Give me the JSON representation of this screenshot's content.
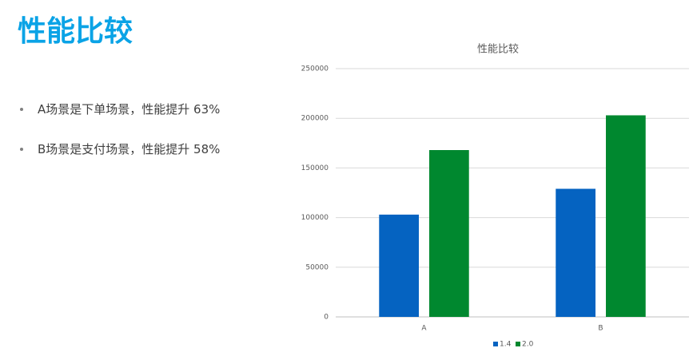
{
  "title": "性能比较",
  "bullets": [
    "A场景是下单场景，性能提升 63%",
    "B场景是支付场景，性能提升 58%"
  ],
  "chart_data": {
    "type": "bar",
    "title": "性能比较",
    "categories": [
      "A",
      "B"
    ],
    "series": [
      {
        "name": "1.4",
        "color": "#0563c1",
        "values": [
          103000,
          129000
        ]
      },
      {
        "name": "2.0",
        "color": "#00882f",
        "values": [
          168000,
          203000
        ]
      }
    ],
    "ylim": [
      0,
      250000
    ],
    "yticks": [
      0,
      50000,
      100000,
      150000,
      200000,
      250000
    ],
    "grid": true,
    "legend": "bottom"
  }
}
